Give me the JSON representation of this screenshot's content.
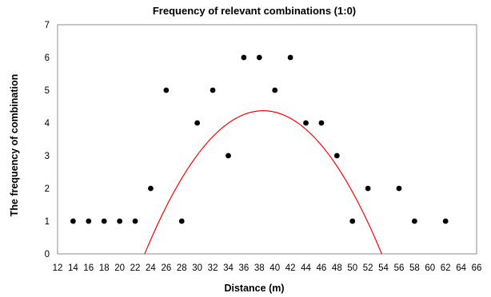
{
  "chart_data": {
    "type": "scatter",
    "title": "Frequency of relevant combinations (1:0)",
    "xlabel": "Distance (m)",
    "ylabel": "The frequency of combination",
    "xlim": [
      12,
      66
    ],
    "ylim": [
      0,
      7
    ],
    "xticks": [
      12,
      14,
      16,
      18,
      20,
      22,
      24,
      26,
      28,
      30,
      32,
      34,
      36,
      38,
      40,
      42,
      44,
      46,
      48,
      50,
      52,
      54,
      56,
      58,
      60,
      62,
      64,
      66
    ],
    "yticks": [
      0,
      1,
      2,
      3,
      4,
      5,
      6,
      7
    ],
    "grid": false,
    "series": [
      {
        "type": "scatter",
        "color": "#000000",
        "points": [
          [
            14,
            1
          ],
          [
            16,
            1
          ],
          [
            18,
            1
          ],
          [
            20,
            1
          ],
          [
            22,
            1
          ],
          [
            24,
            2
          ],
          [
            26,
            5
          ],
          [
            28,
            1
          ],
          [
            30,
            4
          ],
          [
            32,
            5
          ],
          [
            34,
            3
          ],
          [
            36,
            6
          ],
          [
            38,
            6
          ],
          [
            40,
            5
          ],
          [
            42,
            6
          ],
          [
            44,
            4
          ],
          [
            46,
            4
          ],
          [
            48,
            3
          ],
          [
            50,
            1
          ],
          [
            52,
            2
          ],
          [
            56,
            2
          ],
          [
            58,
            1
          ],
          [
            62,
            1
          ]
        ]
      },
      {
        "type": "trendline",
        "fit": "quadratic",
        "color": "#ff0000",
        "coefficients": [
          -0.01875,
          1.44375,
          -23.4188
        ]
      }
    ]
  }
}
